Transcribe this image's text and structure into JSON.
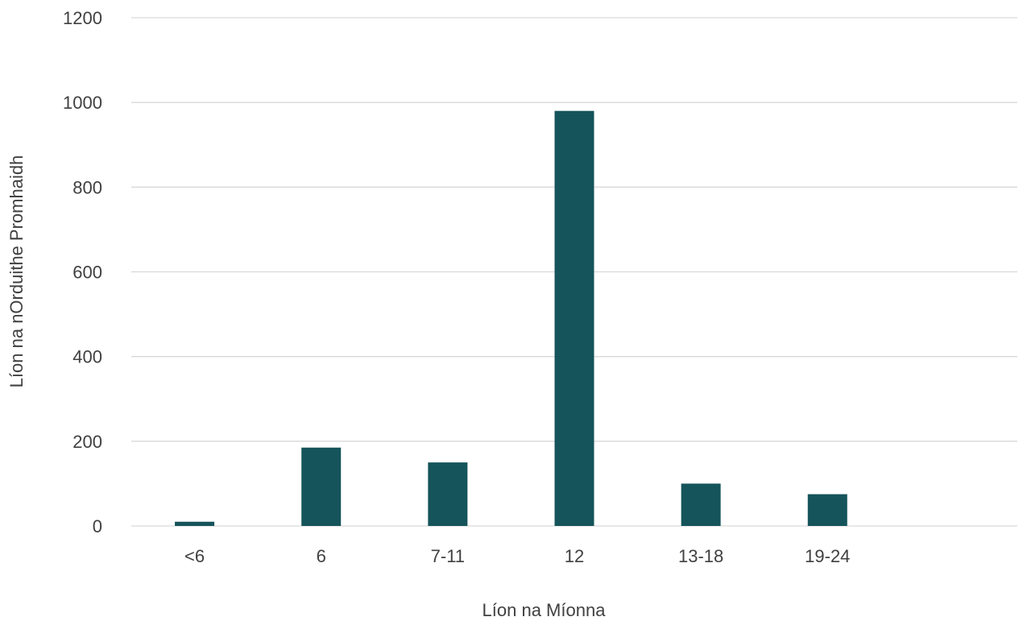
{
  "chart_data": {
    "type": "bar",
    "title": "",
    "xlabel": "Líon na Míonna",
    "ylabel": "Líon na nOrduithe Promhaidh",
    "categories": [
      "<6",
      "6",
      "7-11",
      "12",
      "13-18",
      "19-24",
      ""
    ],
    "values": [
      10,
      185,
      150,
      980,
      100,
      75,
      0
    ],
    "ylim": [
      0,
      1200
    ],
    "yticks": [
      0,
      200,
      400,
      600,
      800,
      1000,
      1200
    ],
    "grid": true,
    "legend": "none",
    "bar_color": "#15545a"
  }
}
